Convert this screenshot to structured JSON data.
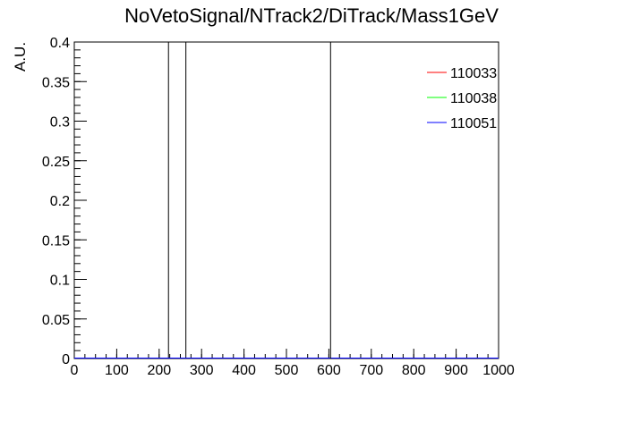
{
  "chart_data": {
    "type": "line",
    "title": "NoVetoSignal/NTrack2/DiTrack/Mass1GeV",
    "xlabel": "",
    "ylabel": "A.U.",
    "xlim": [
      0,
      1000
    ],
    "ylim": [
      0,
      0.4
    ],
    "x_ticks": [
      0,
      100,
      200,
      300,
      400,
      500,
      600,
      700,
      800,
      900,
      1000
    ],
    "x_tick_labels": [
      "0",
      "100",
      "200",
      "300",
      "400",
      "500",
      "600",
      "700",
      "800",
      "900",
      "1000"
    ],
    "y_ticks": [
      0,
      0.05,
      0.1,
      0.15,
      0.2,
      0.25,
      0.3,
      0.35,
      0.4
    ],
    "y_tick_labels": [
      "0",
      "0.05",
      "0.1",
      "0.15",
      "0.2",
      "0.25",
      "0.3",
      "0.35",
      "0.4"
    ],
    "grid": false,
    "legend_position": "top-right",
    "series": [
      {
        "name": "110033",
        "color": "#ff0000",
        "spikes": [
          {
            "x": 222,
            "y": 0.4
          }
        ]
      },
      {
        "name": "110038",
        "color": "#00ff00",
        "spikes": [
          {
            "x": 263,
            "y": 0.4
          }
        ]
      },
      {
        "name": "110051",
        "color": "#0000ff",
        "spikes": [
          {
            "x": 604,
            "y": 0.4
          }
        ]
      }
    ]
  }
}
